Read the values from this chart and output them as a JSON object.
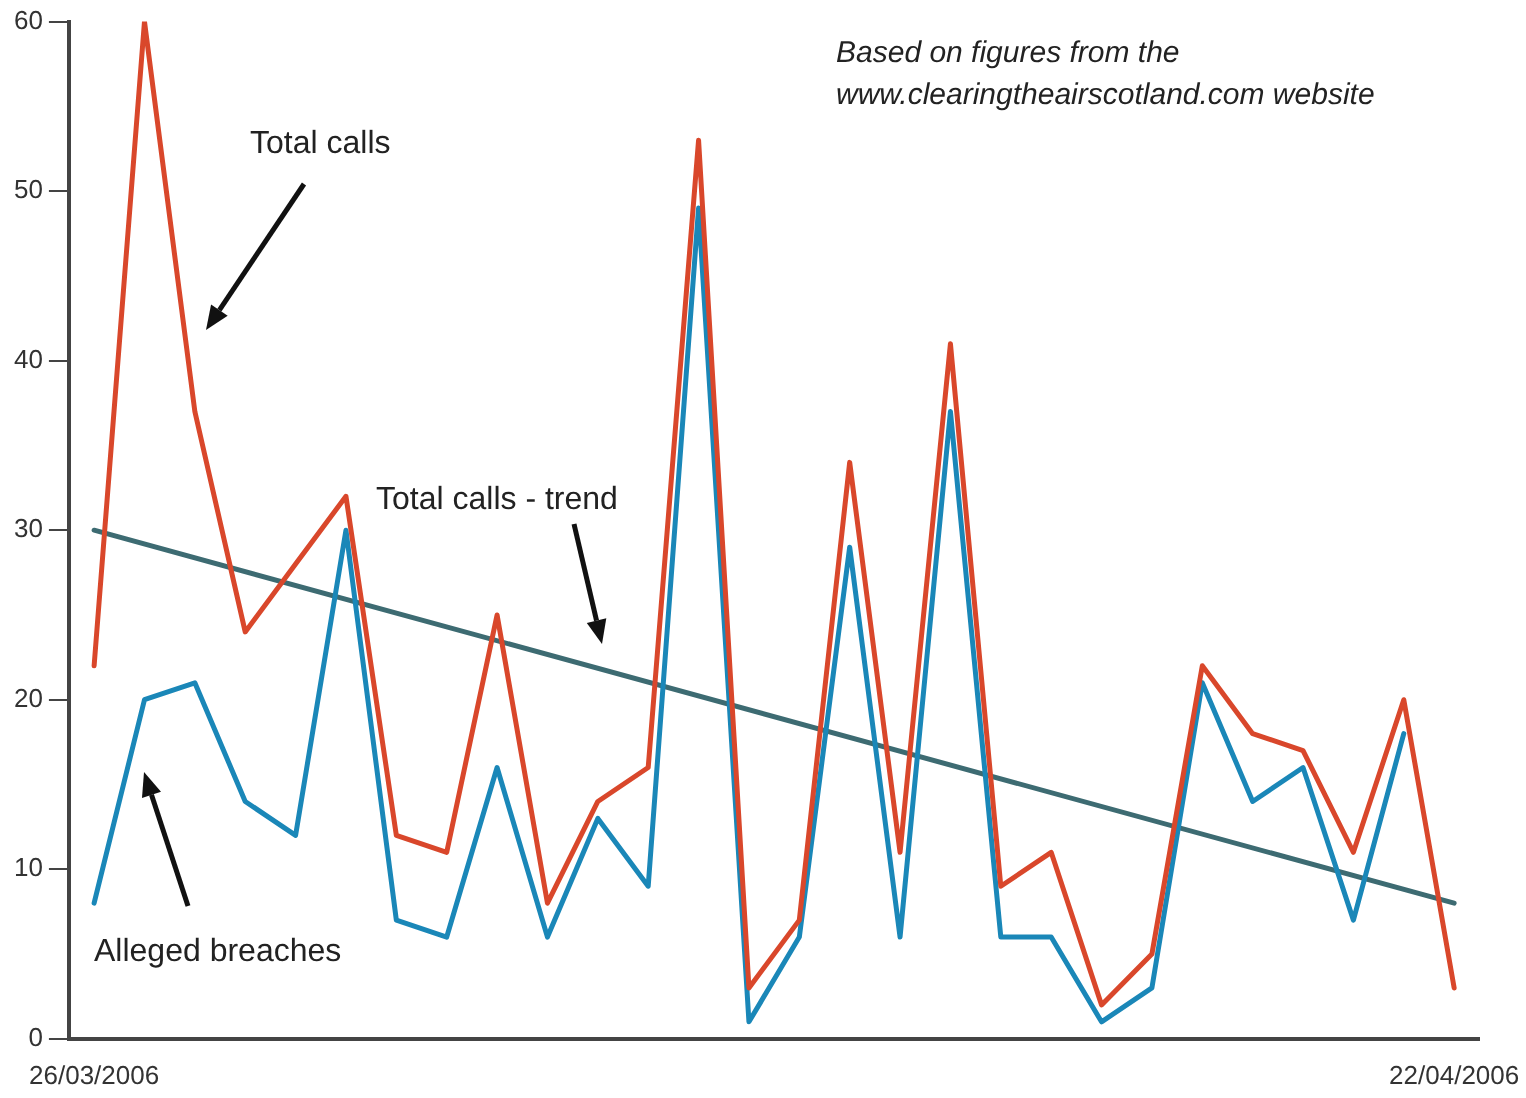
{
  "chart_data": {
    "type": "line",
    "annotations": [
      "Based on figures from the www.clearingtheairscotland.com website"
    ],
    "categories": [
      "26/03/2006",
      null,
      null,
      null,
      null,
      null,
      null,
      null,
      null,
      null,
      null,
      null,
      null,
      null,
      null,
      null,
      null,
      null,
      null,
      null,
      null,
      null,
      null,
      null,
      null,
      null,
      null,
      "22/04/2006"
    ],
    "series": [
      {
        "name": "Total calls",
        "color": "#d9472b",
        "values": [
          22,
          60,
          37,
          24,
          28,
          32,
          12,
          11,
          25,
          8,
          14,
          16,
          53,
          3,
          7,
          34,
          11,
          41,
          9,
          11,
          2,
          5,
          22,
          18,
          17,
          11,
          20,
          3
        ]
      },
      {
        "name": "Alleged breaches",
        "color": "#1a87b8",
        "values": [
          8,
          20,
          21,
          14,
          12,
          30,
          7,
          6,
          16,
          6,
          13,
          9,
          49,
          1,
          6,
          29,
          6,
          37,
          6,
          6,
          1,
          3,
          21,
          14,
          16,
          7,
          18,
          null
        ]
      },
      {
        "name": "Total calls - trend",
        "color": "#3d6b72",
        "x": [
          "26/03/2006",
          "22/04/2006"
        ],
        "values": [
          30,
          8
        ]
      }
    ],
    "ylim": [
      0,
      60
    ],
    "yticks": [
      0,
      10,
      20,
      30,
      40,
      50,
      60
    ],
    "grid": false,
    "legend": false,
    "marker": "none",
    "line_style": "solid"
  }
}
